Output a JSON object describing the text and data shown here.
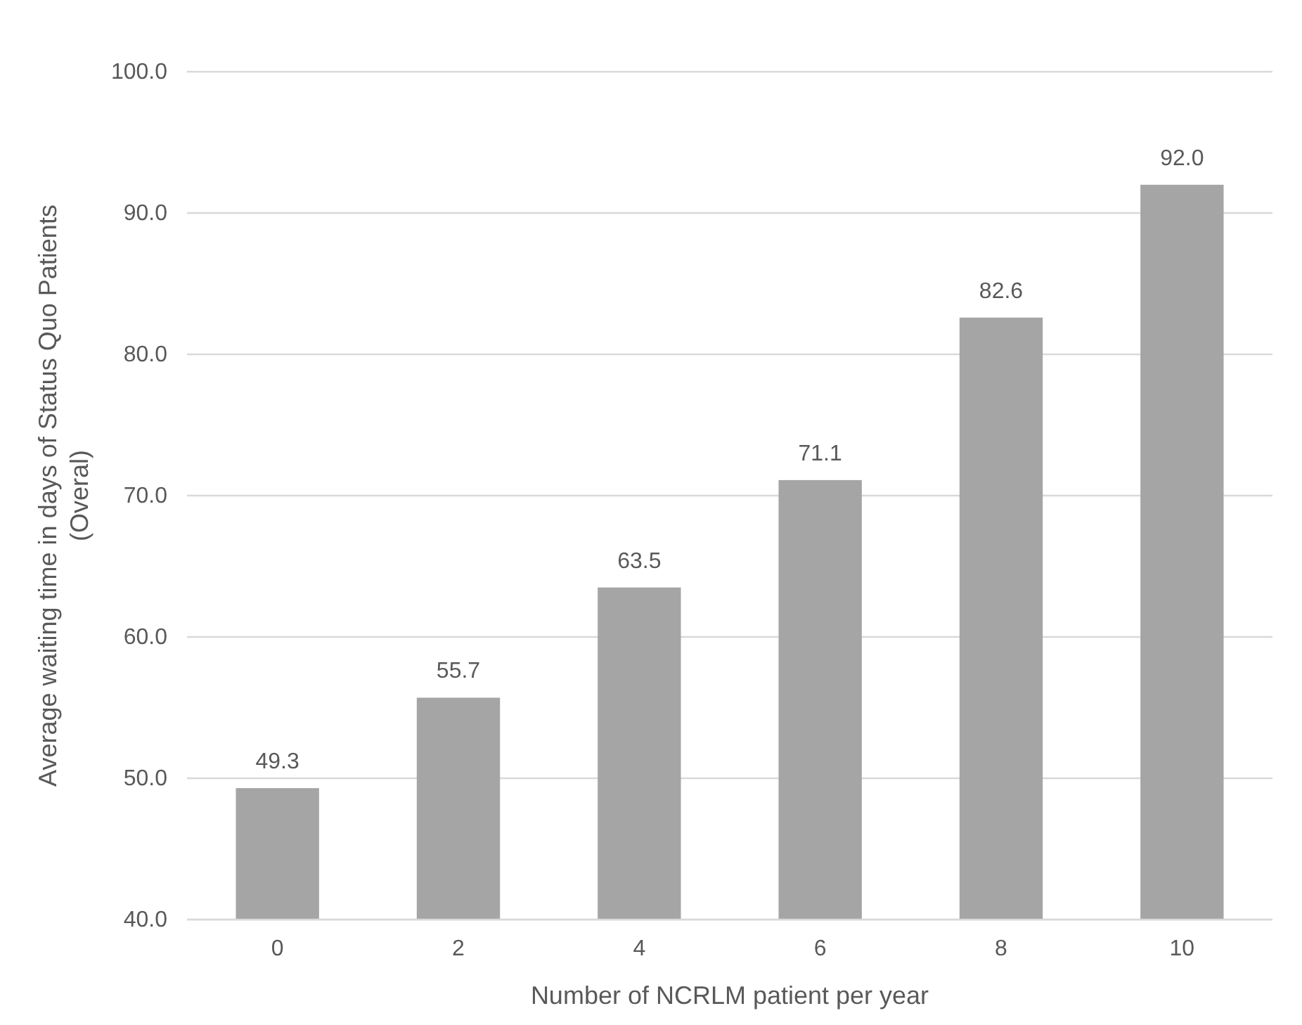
{
  "chart_data": {
    "type": "bar",
    "xlabel": "Number of NCRLM patient per year",
    "ylabel": "Average waiting time in days of Status Quo Patients (Overal)",
    "categories": [
      "0",
      "2",
      "4",
      "6",
      "8",
      "10"
    ],
    "values": [
      49.3,
      55.7,
      63.5,
      71.1,
      82.6,
      92.0
    ],
    "value_labels": [
      "49.3",
      "55.7",
      "63.5",
      "71.1",
      "82.6",
      "92.0"
    ],
    "color": "#a5a5a5",
    "ylim": [
      40,
      100
    ],
    "yticks": [
      {
        "value": 40,
        "label": "40.0"
      },
      {
        "value": 50,
        "label": "50.0"
      },
      {
        "value": 60,
        "label": "60.0"
      },
      {
        "value": 70,
        "label": "70.0"
      },
      {
        "value": 80,
        "label": "80.0"
      },
      {
        "value": 90,
        "label": "90.0"
      },
      {
        "value": 100,
        "label": "100.0"
      }
    ],
    "grid": "y"
  }
}
